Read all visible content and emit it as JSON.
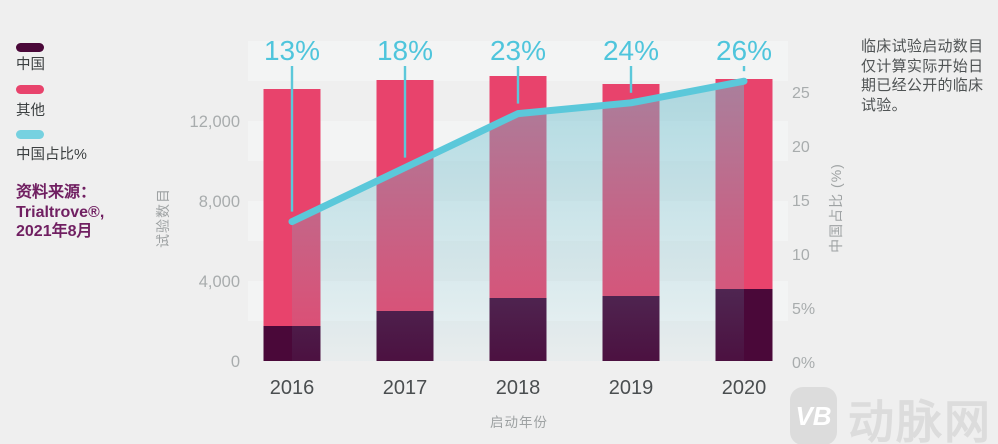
{
  "colors": {
    "china": "#4A0839",
    "others": "#E8436C",
    "pct_pill": "#76D1E0",
    "line": "#5BC8DA",
    "pct_label": "#4FC5DC",
    "area_top": "#68BECE",
    "stripe": "#F3F4F4",
    "axis_tick": "#A8ACAD",
    "axis_title": "#9EA2A3",
    "year_label": "#4A4E50",
    "legend_label": "#3C4041",
    "source_text": "#701F61",
    "note_text": "#4F5354",
    "watermark": "#DCDCDC",
    "bg": "#EFEFEF"
  },
  "legend": {
    "items": [
      {
        "label": "中国",
        "color": "china"
      },
      {
        "label": "其他",
        "color": "others"
      },
      {
        "label": "中国占比%",
        "color": "pct_pill"
      }
    ]
  },
  "source": {
    "lines": [
      "资料来源：",
      "Trialtrove®,",
      "2021年8月"
    ]
  },
  "note": {
    "lines": [
      "临床试验启动数目",
      "仅计算实际开始日",
      "期已经公开的临床",
      "试验。"
    ]
  },
  "watermark": {
    "logo": "VB",
    "text": "动脉网"
  },
  "chart_data": {
    "type": "bar",
    "subtype": "stacked-bars-with-percentage-line",
    "categories": [
      "2016",
      "2017",
      "2018",
      "2019",
      "2020"
    ],
    "series": [
      {
        "name": "中国",
        "type": "bar",
        "values": [
          1750,
          2500,
          3150,
          3250,
          3600
        ]
      },
      {
        "name": "其他",
        "type": "bar",
        "values": [
          11850,
          11550,
          11100,
          10600,
          10500
        ]
      },
      {
        "name": "中国占比%",
        "type": "line",
        "values": [
          13,
          18,
          23,
          24,
          26
        ],
        "labels": [
          "13%",
          "18%",
          "23%",
          "24%",
          "26%"
        ]
      }
    ],
    "left_axis": {
      "title": "试验数目",
      "ticks": [
        {
          "v": 0,
          "label": "0"
        },
        {
          "v": 4000,
          "label": "4,000"
        },
        {
          "v": 8000,
          "label": "8,000"
        },
        {
          "v": 12000,
          "label": "12,000"
        }
      ],
      "max": 16000
    },
    "right_axis": {
      "title": "中国占比 (%)",
      "ticks": [
        {
          "v": 0,
          "label": "0%"
        },
        {
          "v": 5,
          "label": "5%"
        },
        {
          "v": 10,
          "label": "10"
        },
        {
          "v": 15,
          "label": "15"
        },
        {
          "v": 20,
          "label": "20"
        },
        {
          "v": 25,
          "label": "25"
        }
      ],
      "max": 27
    },
    "x_axis": {
      "title": "启动年份"
    },
    "legend_position": "left",
    "grid": "subtle horizontal bands"
  }
}
